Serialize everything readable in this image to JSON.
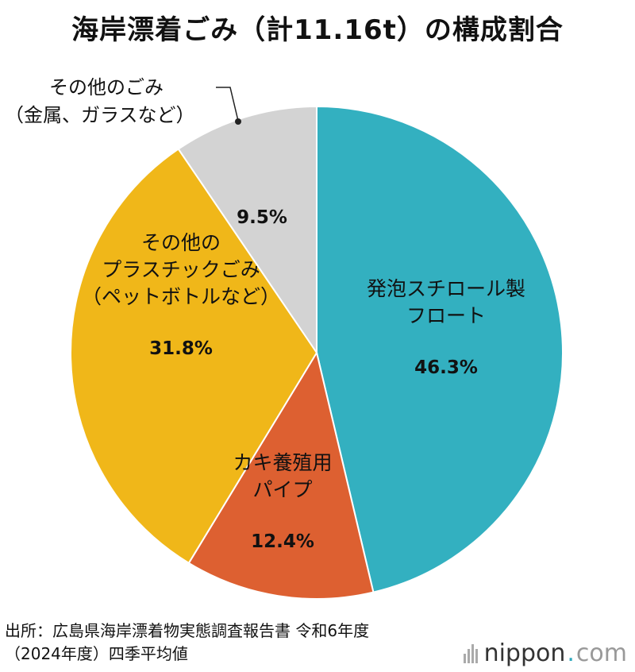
{
  "title": "海岸漂着ごみ（計11.16t）の構成割合",
  "chart_data": {
    "type": "pie",
    "title": "海岸漂着ごみ（計11.16t）の構成割合",
    "slices": [
      {
        "lines": [
          "発泡スチロール製",
          "フロート"
        ],
        "value": 46.3,
        "pct": "46.3%",
        "color": "#33b0c0"
      },
      {
        "lines": [
          "カキ養殖用",
          "パイプ"
        ],
        "value": 12.4,
        "pct": "12.4%",
        "color": "#dd6031"
      },
      {
        "lines": [
          "その他の",
          "プラスチックごみ",
          "（ペットボトルなど）"
        ],
        "value": 31.8,
        "pct": "31.8%",
        "color": "#f0b719"
      },
      {
        "lines": [],
        "value": 9.5,
        "pct": "9.5%",
        "color": "#d3d3d3"
      }
    ],
    "callout": {
      "lines": [
        "その他のごみ",
        "（金属、ガラスなど）"
      ]
    }
  },
  "source": {
    "line1": "出所：広島県海岸漂着物実態調査報告書 令和6年度",
    "line2": "（2024年度）四季平均値"
  },
  "logo": {
    "name": "nippon",
    "dot": ".",
    "suffix": "com"
  }
}
